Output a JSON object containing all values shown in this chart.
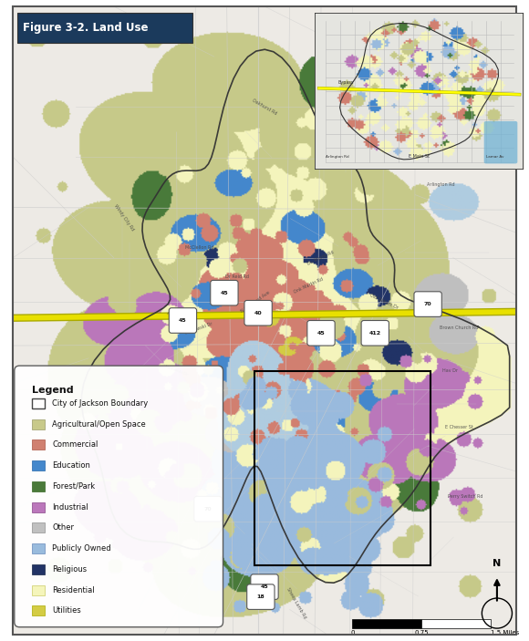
{
  "title": "Figure 3-2. Land Use",
  "title_bg_color": "#1b3a5c",
  "title_text_color": "#ffffff",
  "title_fontsize": 8.5,
  "fig_bg_color": "#ffffff",
  "outer_bg_color": "#f2f2f2",
  "map_bg_color": "#f0eeea",
  "border_color": "#555555",
  "legend_title": "Legend",
  "legend_items": [
    {
      "label": "City of Jackson Boundary",
      "color": "none",
      "edgecolor": "#444444"
    },
    {
      "label": "Agricultural/Open Space",
      "color": "#c8c98a",
      "edgecolor": "#999966"
    },
    {
      "label": "Commercial",
      "color": "#d08070",
      "edgecolor": "#aa5544"
    },
    {
      "label": "Education",
      "color": "#4488cc",
      "edgecolor": "#2266aa"
    },
    {
      "label": "Forest/Park",
      "color": "#4a7a3a",
      "edgecolor": "#336622"
    },
    {
      "label": "Industrial",
      "color": "#bb77bb",
      "edgecolor": "#884488"
    },
    {
      "label": "Other",
      "color": "#c0c0c0",
      "edgecolor": "#909090"
    },
    {
      "label": "Publicly Owned",
      "color": "#99bbdd",
      "edgecolor": "#6688bb"
    },
    {
      "label": "Religious",
      "color": "#223366",
      "edgecolor": "#112244"
    },
    {
      "label": "Residential",
      "color": "#f5f5bb",
      "edgecolor": "#cccc66"
    },
    {
      "label": "Utilities",
      "color": "#d4cc44",
      "edgecolor": "#aaaa00"
    }
  ],
  "highway_color": "#e8e000",
  "highway_outline_color": "#aaaa00",
  "road_color": "#cccccc",
  "water_color": "#b0cce0",
  "outside_city_color": "#e8e8e4",
  "city_boundary_color": "#333333",
  "city_boundary_lw": 1.2
}
